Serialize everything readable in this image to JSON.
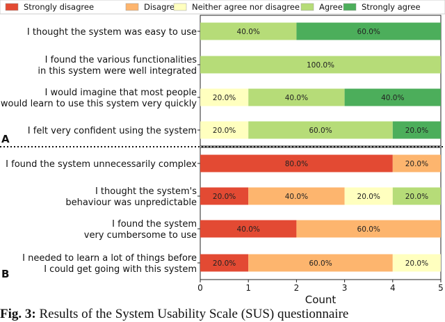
{
  "chart_data": {
    "type": "bar",
    "orientation": "horizontal",
    "stacked": true,
    "xlabel": "Count",
    "xlim": [
      0,
      5
    ],
    "xticks": [
      "0",
      "1",
      "2",
      "3",
      "4",
      "5"
    ],
    "legend": {
      "placement": "top",
      "entries": [
        {
          "label": "Strongly disagree",
          "color": "#e34a33"
        },
        {
          "label": "Disagree",
          "color": "#fdb56e"
        },
        {
          "label": "Neither agree nor disagree",
          "color": "#ffffbf"
        },
        {
          "label": "Agree",
          "color": "#b6dc78"
        },
        {
          "label": "Strongly agree",
          "color": "#4cae5b"
        }
      ]
    },
    "panels": [
      {
        "panel_label": "A",
        "rows": [
          {
            "label_lines": [
              "I thought the system was easy to use"
            ],
            "segments": [
              {
                "category": "Agree",
                "value": 2,
                "label": "40.0%"
              },
              {
                "category": "Strongly agree",
                "value": 3,
                "label": "60.0%"
              }
            ]
          },
          {
            "label_lines": [
              "I found the various functionalities",
              "in this system were well integrated"
            ],
            "segments": [
              {
                "category": "Agree",
                "value": 5,
                "label": "100.0%"
              }
            ]
          },
          {
            "label_lines": [
              "I would imagine that most people",
              "would learn to use this system very quickly"
            ],
            "segments": [
              {
                "category": "Neither agree nor disagree",
                "value": 1,
                "label": "20.0%"
              },
              {
                "category": "Agree",
                "value": 2,
                "label": "40.0%"
              },
              {
                "category": "Strongly agree",
                "value": 2,
                "label": "40.0%"
              }
            ]
          },
          {
            "label_lines": [
              "I felt very confident using the system"
            ],
            "segments": [
              {
                "category": "Neither agree nor disagree",
                "value": 1,
                "label": "20.0%"
              },
              {
                "category": "Agree",
                "value": 3,
                "label": "60.0%"
              },
              {
                "category": "Strongly agree",
                "value": 1,
                "label": "20.0%"
              }
            ]
          }
        ]
      },
      {
        "panel_label": "B",
        "rows": [
          {
            "label_lines": [
              "I found the system unnecessarily complex"
            ],
            "segments": [
              {
                "category": "Strongly disagree",
                "value": 4,
                "label": "80.0%"
              },
              {
                "category": "Disagree",
                "value": 1,
                "label": "20.0%"
              }
            ]
          },
          {
            "label_lines": [
              "I thought the system's",
              "behaviour was unpredictable"
            ],
            "segments": [
              {
                "category": "Strongly disagree",
                "value": 1,
                "label": "20.0%"
              },
              {
                "category": "Disagree",
                "value": 2,
                "label": "40.0%"
              },
              {
                "category": "Neither agree nor disagree",
                "value": 1,
                "label": "20.0%"
              },
              {
                "category": "Agree",
                "value": 1,
                "label": "20.0%"
              }
            ]
          },
          {
            "label_lines": [
              "I found the system",
              "very cumbersome to use"
            ],
            "segments": [
              {
                "category": "Strongly disagree",
                "value": 2,
                "label": "40.0%"
              },
              {
                "category": "Disagree",
                "value": 3,
                "label": "60.0%"
              }
            ]
          },
          {
            "label_lines": [
              "I needed to learn a lot of things before",
              "I could get going with this system"
            ],
            "segments": [
              {
                "category": "Strongly disagree",
                "value": 1,
                "label": "20.0%"
              },
              {
                "category": "Disagree",
                "value": 3,
                "label": "60.0%"
              },
              {
                "category": "Neither agree nor disagree",
                "value": 1,
                "label": "20.0%"
              }
            ]
          }
        ]
      }
    ]
  },
  "caption": {
    "prefix": "Fig. 3:",
    "text": "Results of the System Usability Scale (SUS) questionnaire"
  }
}
